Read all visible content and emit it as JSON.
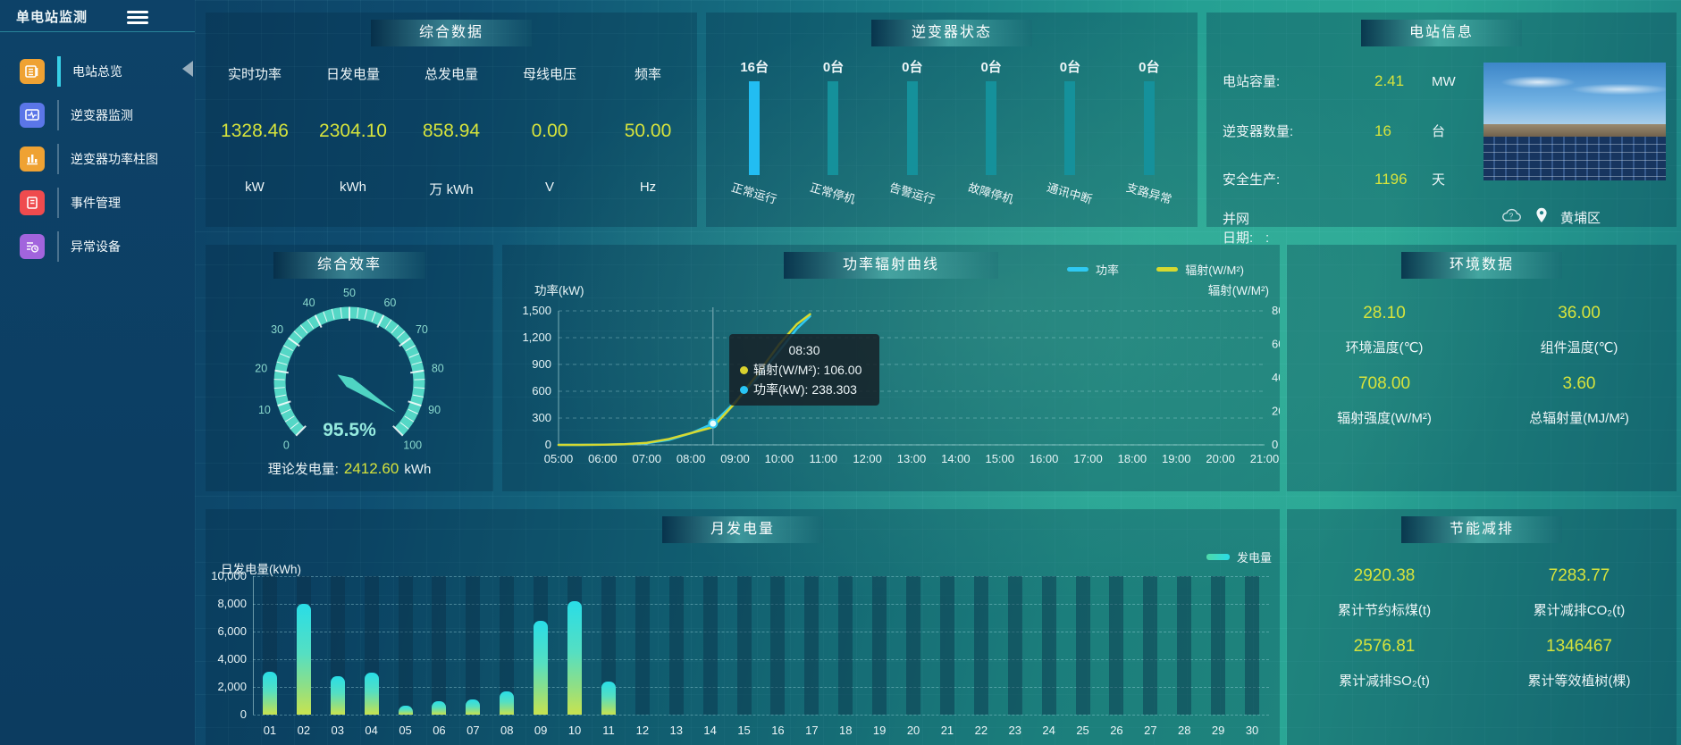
{
  "app": {
    "title": "单电站监测"
  },
  "sidebar": {
    "items": [
      {
        "label": "电站总览",
        "color": "#efa233",
        "active": true
      },
      {
        "label": "逆变器监测",
        "color": "#5b76e8",
        "active": false
      },
      {
        "label": "逆变器功率柱图",
        "color": "#efa233",
        "active": false
      },
      {
        "label": "事件管理",
        "color": "#ef4b4e",
        "active": false
      },
      {
        "label": "异常设备",
        "color": "#a264dd",
        "active": false
      }
    ]
  },
  "panels": {
    "summary": {
      "title": "综合数据",
      "metrics": [
        {
          "label": "实时功率",
          "value": "1328.46",
          "unit": "kW"
        },
        {
          "label": "日发电量",
          "value": "2304.10",
          "unit": "kWh"
        },
        {
          "label": "总发电量",
          "value": "858.94",
          "unit": "万 kWh"
        },
        {
          "label": "母线电压",
          "value": "0.00",
          "unit": "V"
        },
        {
          "label": "频率",
          "value": "50.00",
          "unit": "Hz"
        }
      ]
    },
    "inverter_status": {
      "title": "逆变器状态",
      "bars": [
        {
          "count": "16台",
          "label": "正常运行",
          "color": "#22bdf2"
        },
        {
          "count": "0台",
          "label": "正常停机",
          "color": "#15919b"
        },
        {
          "count": "0台",
          "label": "告警运行",
          "color": "#15919b"
        },
        {
          "count": "0台",
          "label": "故障停机",
          "color": "#15919b"
        },
        {
          "count": "0台",
          "label": "通讯中断",
          "color": "#15919b"
        },
        {
          "count": "0台",
          "label": "支路异常",
          "color": "#15919b"
        }
      ]
    },
    "station_info": {
      "title": "电站信息",
      "rows": [
        {
          "label": "电站容量:",
          "value": "2.41",
          "unit": "MW"
        },
        {
          "label": "逆变器数量:",
          "value": "16",
          "unit": "台"
        },
        {
          "label": "安全生产:",
          "value": "1196",
          "unit": "天"
        }
      ],
      "grid_date_label": "并网日期:",
      "grid_date_value": ":",
      "location": "黄埔区"
    },
    "efficiency": {
      "title": "综合效率",
      "value_text": "95.5%",
      "theory_label": "理论发电量:",
      "theory_value": "2412.60",
      "theory_unit": "kWh"
    },
    "power_radiation": {
      "title": "功率辐射曲线",
      "left_axis": "功率(kW)",
      "right_axis": "辐射(W/M²)",
      "legend": [
        {
          "label": "功率",
          "color": "#2fc9f2"
        },
        {
          "label": "辐射(W/M²)",
          "color": "#d6d930"
        }
      ],
      "tooltip": {
        "time": "08:30",
        "rows": [
          {
            "dot": "#d9d22e",
            "text": "辐射(W/M²): 106.00"
          },
          {
            "dot": "#28c5f5",
            "text": "功率(kW): 238.303"
          }
        ]
      }
    },
    "environment": {
      "title": "环境数据",
      "items": [
        {
          "value": "28.10",
          "label": "环境温度(℃)"
        },
        {
          "value": "36.00",
          "label": "组件温度(℃)"
        },
        {
          "value": "708.00",
          "label": "辐射强度(W/M²)"
        },
        {
          "value": "3.60",
          "label": "总辐射量(MJ/M²)"
        }
      ]
    },
    "monthly": {
      "title": "月发电量",
      "ylabel": "日发电量(kWh)",
      "legend": "发电量"
    },
    "saving": {
      "title": "节能减排",
      "items": [
        {
          "value": "2920.38",
          "label": "累计节约标煤(t)"
        },
        {
          "value": "7283.77",
          "label": "累计减排CO₂(t)"
        },
        {
          "value": "2576.81",
          "label": "累计减排SO₂(t)"
        },
        {
          "value": "1346467",
          "label": "累计等效植树(棵)"
        }
      ]
    }
  },
  "chart_data": [
    {
      "type": "line",
      "title": "功率辐射曲线",
      "x_labels": [
        "05:00",
        "06:00",
        "07:00",
        "08:00",
        "09:00",
        "10:00",
        "11:00",
        "12:00",
        "13:00",
        "14:00",
        "15:00",
        "16:00",
        "17:00",
        "18:00",
        "19:00",
        "20:00",
        "21:00"
      ],
      "x_range": [
        5,
        21
      ],
      "left_ticks": [
        "1,500",
        "1,200",
        "900",
        "600",
        "300",
        "0"
      ],
      "left_max": 1500,
      "right_ticks": [
        "800",
        "600",
        "400",
        "200",
        "0"
      ],
      "right_max": 800,
      "pointer_hour": 8.5,
      "series": [
        {
          "name": "功率",
          "axis": "left",
          "color": "#2fc9f2",
          "points": [
            [
              5,
              0
            ],
            [
              5.5,
              0
            ],
            [
              6,
              2
            ],
            [
              6.5,
              6
            ],
            [
              7,
              18
            ],
            [
              7.5,
              55
            ],
            [
              8,
              130
            ],
            [
              8.5,
              238.3
            ],
            [
              9,
              480
            ],
            [
              9.5,
              750
            ],
            [
              10,
              1050
            ],
            [
              10.4,
              1300
            ],
            [
              10.7,
              1440
            ]
          ]
        },
        {
          "name": "辐射(W/M²)",
          "axis": "right",
          "color": "#d6d930",
          "points": [
            [
              5,
              0
            ],
            [
              5.5,
              0
            ],
            [
              6,
              1
            ],
            [
              6.5,
              4
            ],
            [
              7,
              12
            ],
            [
              7.5,
              35
            ],
            [
              8,
              70
            ],
            [
              8.5,
              106
            ],
            [
              9,
              250
            ],
            [
              9.5,
              420
            ],
            [
              10,
              600
            ],
            [
              10.4,
              720
            ],
            [
              10.7,
              780
            ]
          ]
        }
      ],
      "legend_position": "top-right",
      "grid": true
    },
    {
      "type": "bar",
      "title": "月发电量",
      "ylabel": "日发电量(kWh)",
      "categories": [
        "01",
        "02",
        "03",
        "04",
        "05",
        "06",
        "07",
        "08",
        "09",
        "10",
        "11",
        "12",
        "13",
        "14",
        "15",
        "16",
        "17",
        "18",
        "19",
        "20",
        "21",
        "22",
        "23",
        "24",
        "25",
        "26",
        "27",
        "28",
        "29",
        "30"
      ],
      "values": [
        3100,
        8000,
        2800,
        3050,
        650,
        950,
        1100,
        1700,
        6750,
        8200,
        2400,
        0,
        0,
        0,
        0,
        0,
        0,
        0,
        0,
        0,
        0,
        0,
        0,
        0,
        0,
        0,
        0,
        0,
        0,
        0
      ],
      "y_ticks": [
        "10,000",
        "8,000",
        "6,000",
        "4,000",
        "2,000",
        "0"
      ],
      "ylim": [
        0,
        10000
      ],
      "legend": "发电量",
      "grid": true
    },
    {
      "type": "gauge",
      "title": "综合效率",
      "value": 95.5,
      "min": 0,
      "max": 100,
      "tick_step": 10,
      "color": "#55d7c6"
    },
    {
      "type": "bar",
      "title": "逆变器状态",
      "categories": [
        "正常运行",
        "正常停机",
        "告警运行",
        "故障停机",
        "通讯中断",
        "支路异常"
      ],
      "values": [
        16,
        0,
        0,
        0,
        0,
        0
      ],
      "unit": "台"
    }
  ]
}
